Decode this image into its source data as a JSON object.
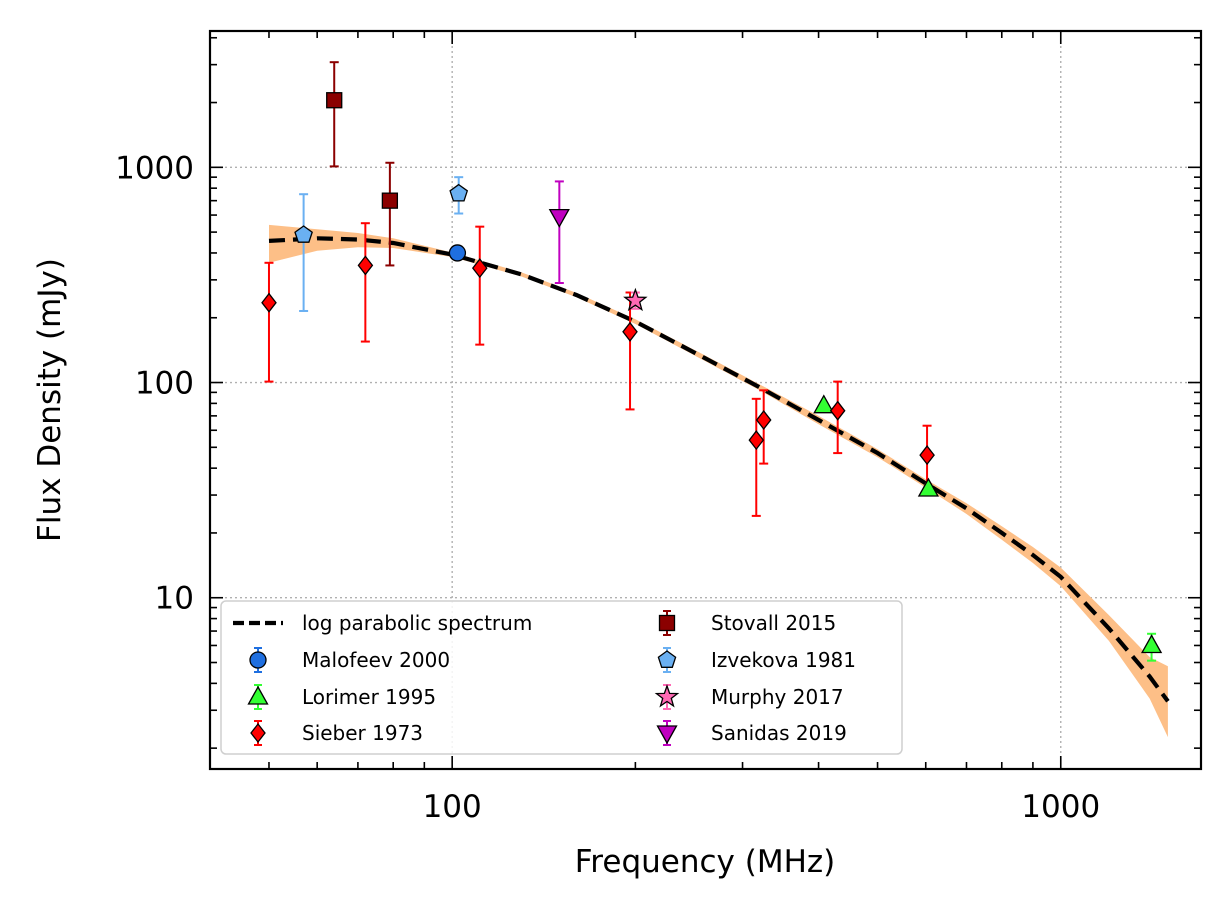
{
  "chart_data": {
    "type": "scatter",
    "xscale": "log",
    "yscale": "log",
    "xlim": [
      40,
      1700
    ],
    "ylim": [
      1.6,
      4300
    ],
    "xlabel": "Frequency (MHz)",
    "ylabel": "Flux Density (mJy)",
    "xticks": [
      {
        "value": 100,
        "label": "100"
      },
      {
        "value": 1000,
        "label": "1000"
      }
    ],
    "yticks": [
      {
        "value": 10,
        "label": "10"
      },
      {
        "value": 100,
        "label": "100"
      },
      {
        "value": 1000,
        "label": "1000"
      }
    ],
    "grid": true,
    "legend_position": "lower-left",
    "legend_columns": 2,
    "fit": {
      "label": "log parabolic spectrum",
      "color": "#000000",
      "band_color": "#fdbf87",
      "x": [
        50,
        60,
        70,
        80,
        100,
        130,
        160,
        200,
        260,
        320,
        400,
        500,
        600,
        700,
        800,
        900,
        1000,
        1200,
        1400,
        1500
      ],
      "y": [
        455,
        468,
        462,
        445,
        393,
        318,
        255,
        192,
        130,
        95,
        67,
        47,
        34,
        26,
        20,
        15.8,
        12.5,
        7.2,
        4.3,
        3.3
      ],
      "y_low": [
        360,
        410,
        425,
        422,
        383,
        311,
        249,
        187,
        126,
        92,
        64,
        45,
        32.5,
        24.5,
        18.6,
        14.5,
        11.3,
        6.3,
        3.4,
        2.25
      ],
      "y_high": [
        540,
        515,
        495,
        468,
        402,
        325,
        261,
        197,
        134,
        98,
        70,
        49,
        35.5,
        27.5,
        21.5,
        17.2,
        13.8,
        8.3,
        5.3,
        4.8
      ]
    },
    "series": [
      {
        "name": "Malofeev 2000",
        "marker": "circle",
        "color": "#1f6fe0",
        "points": [
          {
            "x": 102,
            "y": 400,
            "lo": 385,
            "hi": 415
          }
        ]
      },
      {
        "name": "Lorimer 1995",
        "marker": "triangle-up",
        "color": "#33ff33",
        "points": [
          {
            "x": 408,
            "y": 78,
            "lo": 76,
            "hi": 80
          },
          {
            "x": 606,
            "y": 32,
            "lo": 31,
            "hi": 33
          },
          {
            "x": 1410,
            "y": 6,
            "lo": 5.1,
            "hi": 6.8
          }
        ]
      },
      {
        "name": "Sieber 1973",
        "marker": "diamond",
        "color": "#ff0000",
        "points": [
          {
            "x": 50,
            "y": 235,
            "lo": 101,
            "hi": 360
          },
          {
            "x": 72,
            "y": 350,
            "lo": 155,
            "hi": 550
          },
          {
            "x": 111,
            "y": 340,
            "lo": 150,
            "hi": 530
          },
          {
            "x": 196,
            "y": 172,
            "lo": 75,
            "hi": 262
          },
          {
            "x": 316,
            "y": 54,
            "lo": 24,
            "hi": 84
          },
          {
            "x": 325,
            "y": 67,
            "lo": 42,
            "hi": 92
          },
          {
            "x": 430,
            "y": 74,
            "lo": 47,
            "hi": 101
          },
          {
            "x": 603,
            "y": 46,
            "lo": 30,
            "hi": 63
          }
        ]
      },
      {
        "name": "Stovall 2015",
        "marker": "square",
        "color": "#8b0000",
        "points": [
          {
            "x": 64,
            "y": 2050,
            "lo": 1010,
            "hi": 3080
          },
          {
            "x": 79,
            "y": 700,
            "lo": 350,
            "hi": 1050
          }
        ]
      },
      {
        "name": "Izvekova 1981",
        "marker": "pentagon",
        "color": "#6ab0f2",
        "points": [
          {
            "x": 57,
            "y": 485,
            "lo": 215,
            "hi": 750
          },
          {
            "x": 102.5,
            "y": 755,
            "lo": 610,
            "hi": 900
          }
        ]
      },
      {
        "name": "Murphy 2017",
        "marker": "star",
        "color": "#ff69b4",
        "points": [
          {
            "x": 200,
            "y": 240,
            "lo": 220,
            "hi": 262
          }
        ]
      },
      {
        "name": "Sanidas 2019",
        "marker": "triangle-down",
        "color": "#c000c0",
        "points": [
          {
            "x": 150,
            "y": 590,
            "lo": 290,
            "hi": 860
          }
        ]
      }
    ]
  }
}
